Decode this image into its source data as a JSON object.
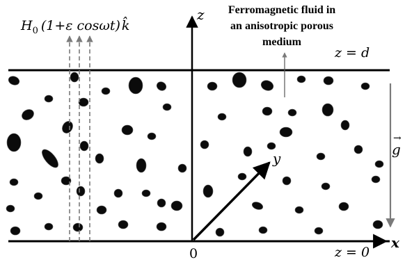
{
  "field_label": {
    "H": "H",
    "H_sub": "0",
    "expr": "(1+ε cosωt)",
    "k_hat": "k̂"
  },
  "title_lines": [
    "Ferromagnetic fluid in",
    "an anisotropic porous",
    "medium"
  ],
  "labels": {
    "z_axis": "z",
    "top_boundary": "z = d",
    "bottom_boundary": "z = 0",
    "x_axis": "x",
    "y_axis": "y",
    "origin": "0",
    "gravity": "g"
  }
}
